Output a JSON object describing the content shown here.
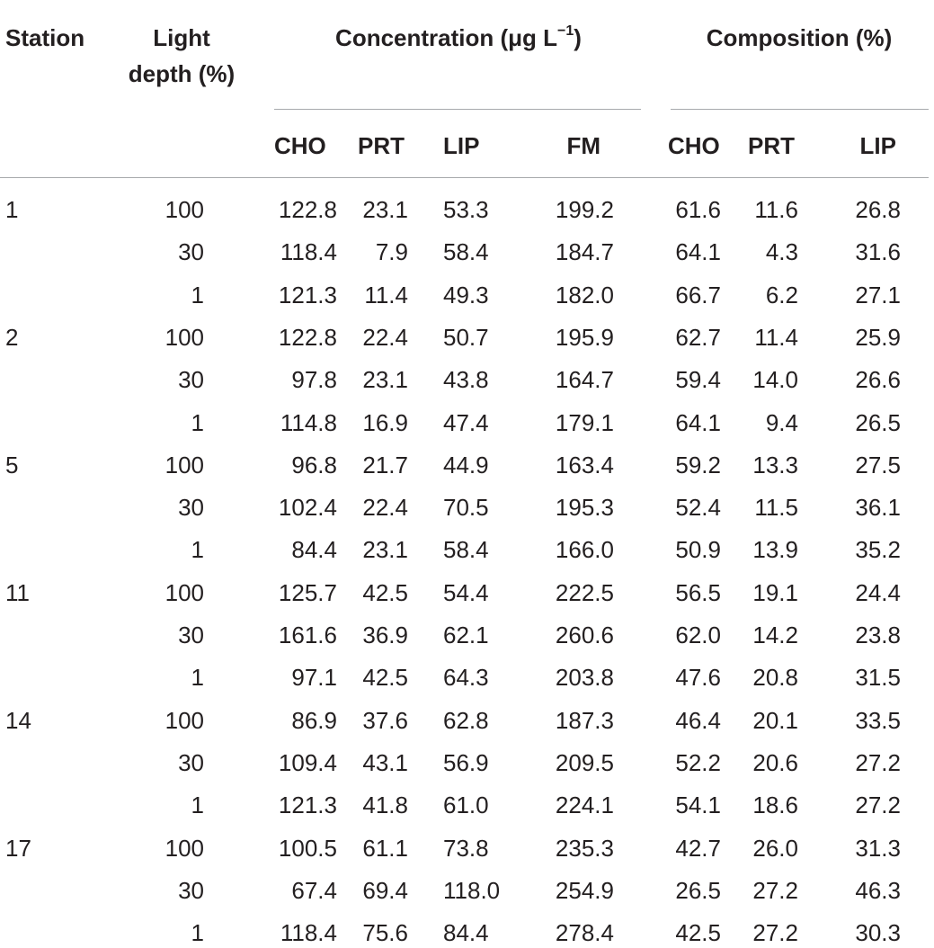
{
  "header": {
    "station": "Station",
    "light_depth_line1": "Light",
    "light_depth_line2": "depth (%)",
    "concentration_text": "Concentration (μg L",
    "concentration_sup": "−1",
    "concentration_close": ")",
    "composition": "Composition (%)",
    "sub_columns": [
      "CHO",
      "PRT",
      "LIP",
      "FM",
      "CHO",
      "PRT",
      "LIP"
    ]
  },
  "rows": [
    {
      "station": "1",
      "light": "100",
      "cho": "122.8",
      "prt": "23.1",
      "lip": "53.3",
      "fm": "199.2",
      "pcho": "61.6",
      "pprt": "11.6",
      "plip": "26.8"
    },
    {
      "station": "",
      "light": "30",
      "cho": "118.4",
      "prt": "7.9",
      "lip": "58.4",
      "fm": "184.7",
      "pcho": "64.1",
      "pprt": "4.3",
      "plip": "31.6"
    },
    {
      "station": "",
      "light": "1",
      "cho": "121.3",
      "prt": "11.4",
      "lip": "49.3",
      "fm": "182.0",
      "pcho": "66.7",
      "pprt": "6.2",
      "plip": "27.1"
    },
    {
      "station": "2",
      "light": "100",
      "cho": "122.8",
      "prt": "22.4",
      "lip": "50.7",
      "fm": "195.9",
      "pcho": "62.7",
      "pprt": "11.4",
      "plip": "25.9"
    },
    {
      "station": "",
      "light": "30",
      "cho": "97.8",
      "prt": "23.1",
      "lip": "43.8",
      "fm": "164.7",
      "pcho": "59.4",
      "pprt": "14.0",
      "plip": "26.6"
    },
    {
      "station": "",
      "light": "1",
      "cho": "114.8",
      "prt": "16.9",
      "lip": "47.4",
      "fm": "179.1",
      "pcho": "64.1",
      "pprt": "9.4",
      "plip": "26.5"
    },
    {
      "station": "5",
      "light": "100",
      "cho": "96.8",
      "prt": "21.7",
      "lip": "44.9",
      "fm": "163.4",
      "pcho": "59.2",
      "pprt": "13.3",
      "plip": "27.5"
    },
    {
      "station": "",
      "light": "30",
      "cho": "102.4",
      "prt": "22.4",
      "lip": "70.5",
      "fm": "195.3",
      "pcho": "52.4",
      "pprt": "11.5",
      "plip": "36.1"
    },
    {
      "station": "",
      "light": "1",
      "cho": "84.4",
      "prt": "23.1",
      "lip": "58.4",
      "fm": "166.0",
      "pcho": "50.9",
      "pprt": "13.9",
      "plip": "35.2"
    },
    {
      "station": "11",
      "light": "100",
      "cho": "125.7",
      "prt": "42.5",
      "lip": "54.4",
      "fm": "222.5",
      "pcho": "56.5",
      "pprt": "19.1",
      "plip": "24.4"
    },
    {
      "station": "",
      "light": "30",
      "cho": "161.6",
      "prt": "36.9",
      "lip": "62.1",
      "fm": "260.6",
      "pcho": "62.0",
      "pprt": "14.2",
      "plip": "23.8"
    },
    {
      "station": "",
      "light": "1",
      "cho": "97.1",
      "prt": "42.5",
      "lip": "64.3",
      "fm": "203.8",
      "pcho": "47.6",
      "pprt": "20.8",
      "plip": "31.5"
    },
    {
      "station": "14",
      "light": "100",
      "cho": "86.9",
      "prt": "37.6",
      "lip": "62.8",
      "fm": "187.3",
      "pcho": "46.4",
      "pprt": "20.1",
      "plip": "33.5"
    },
    {
      "station": "",
      "light": "30",
      "cho": "109.4",
      "prt": "43.1",
      "lip": "56.9",
      "fm": "209.5",
      "pcho": "52.2",
      "pprt": "20.6",
      "plip": "27.2"
    },
    {
      "station": "",
      "light": "1",
      "cho": "121.3",
      "prt": "41.8",
      "lip": "61.0",
      "fm": "224.1",
      "pcho": "54.1",
      "pprt": "18.6",
      "plip": "27.2"
    },
    {
      "station": "17",
      "light": "100",
      "cho": "100.5",
      "prt": "61.1",
      "lip": "73.8",
      "fm": "235.3",
      "pcho": "42.7",
      "pprt": "26.0",
      "plip": "31.3"
    },
    {
      "station": "",
      "light": "30",
      "cho": "67.4",
      "prt": "69.4",
      "lip": "118.0",
      "fm": "254.9",
      "pcho": "26.5",
      "pprt": "27.2",
      "plip": "46.3"
    },
    {
      "station": "",
      "light": "1",
      "cho": "118.4",
      "prt": "75.6",
      "lip": "84.4",
      "fm": "278.4",
      "pcho": "42.5",
      "pprt": "27.2",
      "plip": "30.3"
    }
  ]
}
